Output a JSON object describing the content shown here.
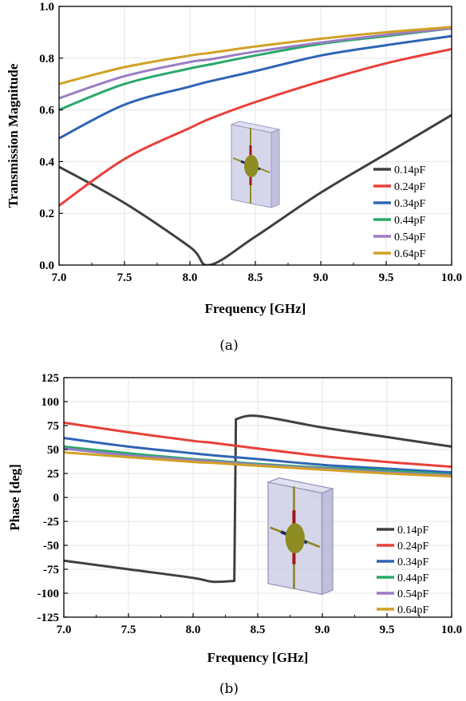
{
  "chart_data": [
    {
      "type": "line",
      "caption": "(a)",
      "xlabel": "Frequency [GHz]",
      "ylabel": "Transmission Magnitude",
      "xlim": [
        7.0,
        10.0
      ],
      "ylim": [
        0.0,
        1.0
      ],
      "xticks": [
        "7.0",
        "7.5",
        "8.0",
        "8.5",
        "9.0",
        "9.5",
        "10.0"
      ],
      "yticks": [
        "0.0",
        "0.2",
        "0.4",
        "0.6",
        "0.8",
        "1.0"
      ],
      "grid": true,
      "legend_position": "lower-right",
      "x": [
        7.0,
        7.5,
        8.0,
        8.15,
        8.5,
        9.0,
        9.5,
        10.0
      ],
      "series": [
        {
          "name": "0.14pF",
          "color": "#404040",
          "values": [
            0.38,
            0.24,
            0.07,
            0.0,
            0.11,
            0.28,
            0.43,
            0.58
          ]
        },
        {
          "name": "0.24pF",
          "color": "#e8403a",
          "values": [
            0.23,
            0.41,
            0.53,
            0.565,
            0.63,
            0.71,
            0.78,
            0.835
          ]
        },
        {
          "name": "0.34pF",
          "color": "#2f64b4",
          "values": [
            0.49,
            0.62,
            0.69,
            0.71,
            0.75,
            0.81,
            0.85,
            0.885
          ]
        },
        {
          "name": "0.44pF",
          "color": "#2aa86a",
          "values": [
            0.6,
            0.7,
            0.76,
            0.775,
            0.81,
            0.855,
            0.885,
            0.915
          ]
        },
        {
          "name": "0.54pF",
          "color": "#9a7cc4",
          "values": [
            0.645,
            0.73,
            0.785,
            0.795,
            0.825,
            0.86,
            0.89,
            0.915
          ]
        },
        {
          "name": "0.64pF",
          "color": "#d1a126",
          "values": [
            0.7,
            0.765,
            0.81,
            0.82,
            0.845,
            0.875,
            0.9,
            0.92
          ]
        }
      ]
    },
    {
      "type": "line",
      "caption": "(b)",
      "xlabel": "Frequency [GHz]",
      "ylabel": "Phase [deg]",
      "xlim": [
        7.0,
        10.0
      ],
      "ylim": [
        -125,
        125
      ],
      "xticks": [
        "7.0",
        "7.5",
        "8.0",
        "8.5",
        "9.0",
        "9.5",
        "10.0"
      ],
      "yticks": [
        "125",
        "100",
        "75",
        "50",
        "25",
        "0",
        "-25",
        "-50",
        "-75",
        "-100",
        "-125"
      ],
      "grid": true,
      "legend_position": "lower-right",
      "x": [
        7.0,
        7.5,
        8.0,
        8.15,
        8.5,
        9.0,
        9.5,
        10.0
      ],
      "series": [
        {
          "name": "0.14pF",
          "color": "#404040",
          "values": [
            -66,
            -75,
            -84,
            -88,
            85,
            73,
            63,
            53
          ]
        },
        {
          "name": "0.24pF",
          "color": "#e8403a",
          "values": [
            78,
            68,
            59,
            57,
            51,
            43,
            37,
            32
          ]
        },
        {
          "name": "0.34pF",
          "color": "#2f64b4",
          "values": [
            62,
            53,
            46,
            44,
            40,
            34,
            30,
            26
          ]
        },
        {
          "name": "0.44pF",
          "color": "#2aa86a",
          "values": [
            53,
            46,
            40,
            38.5,
            35,
            31,
            28,
            24
          ]
        },
        {
          "name": "0.54pF",
          "color": "#9a7cc4",
          "values": [
            51,
            44,
            39,
            37.5,
            34,
            30,
            26,
            23
          ]
        },
        {
          "name": "0.64pF",
          "color": "#d1a126",
          "values": [
            47,
            42,
            37,
            36,
            33,
            29,
            25,
            22
          ]
        }
      ]
    }
  ]
}
